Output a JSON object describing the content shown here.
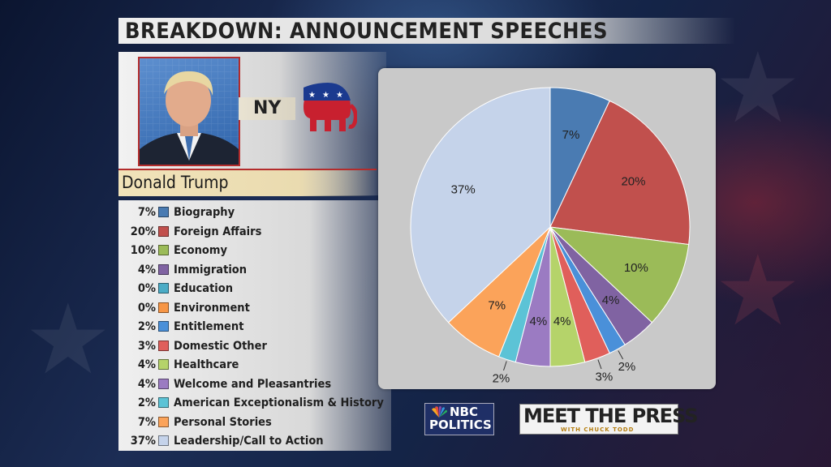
{
  "title": "BREAKDOWN: ANNOUNCEMENT SPEECHES",
  "candidate": {
    "name": "Donald Trump",
    "state": "NY"
  },
  "logos": {
    "nbc_line1": "NBC",
    "nbc_line2": "POLITICS",
    "mtp_line1": "MEET THE PRESS",
    "mtp_line2": "WITH CHUCK TODD"
  },
  "chart_data": {
    "type": "pie",
    "title": "BREAKDOWN: ANNOUNCEMENT SPEECHES",
    "slices": [
      {
        "label": "Biography",
        "value": 7,
        "display": "7%",
        "color": "#4a7bb2"
      },
      {
        "label": "Foreign Affairs",
        "value": 20,
        "display": "20%",
        "color": "#c1504d"
      },
      {
        "label": "Economy",
        "value": 10,
        "display": "10%",
        "color": "#9bbb58"
      },
      {
        "label": "Immigration",
        "value": 4,
        "display": "4%",
        "color": "#8063a2"
      },
      {
        "label": "Education",
        "value": 0,
        "display": "0%",
        "color": "#4bacc6"
      },
      {
        "label": "Environment",
        "value": 0,
        "display": "0%",
        "color": "#f79646"
      },
      {
        "label": "Entitlement",
        "value": 2,
        "display": "2%",
        "color": "#4a90d9"
      },
      {
        "label": "Domestic Other",
        "value": 3,
        "display": "3%",
        "color": "#e05f5b"
      },
      {
        "label": "Healthcare",
        "value": 4,
        "display": "4%",
        "color": "#b5d36a"
      },
      {
        "label": "Welcome and Pleasantries",
        "value": 4,
        "display": "4%",
        "color": "#9b7bc2"
      },
      {
        "label": "American Exceptionalism & History",
        "value": 2,
        "display": "2%",
        "color": "#5cc3d6"
      },
      {
        "label": "Personal Stories",
        "value": 7,
        "display": "7%",
        "color": "#fba35a"
      },
      {
        "label": "Leadership/Call to Action",
        "value": 37,
        "display": "37%",
        "color": "#c5d3ea"
      }
    ],
    "legend_position": "left"
  }
}
